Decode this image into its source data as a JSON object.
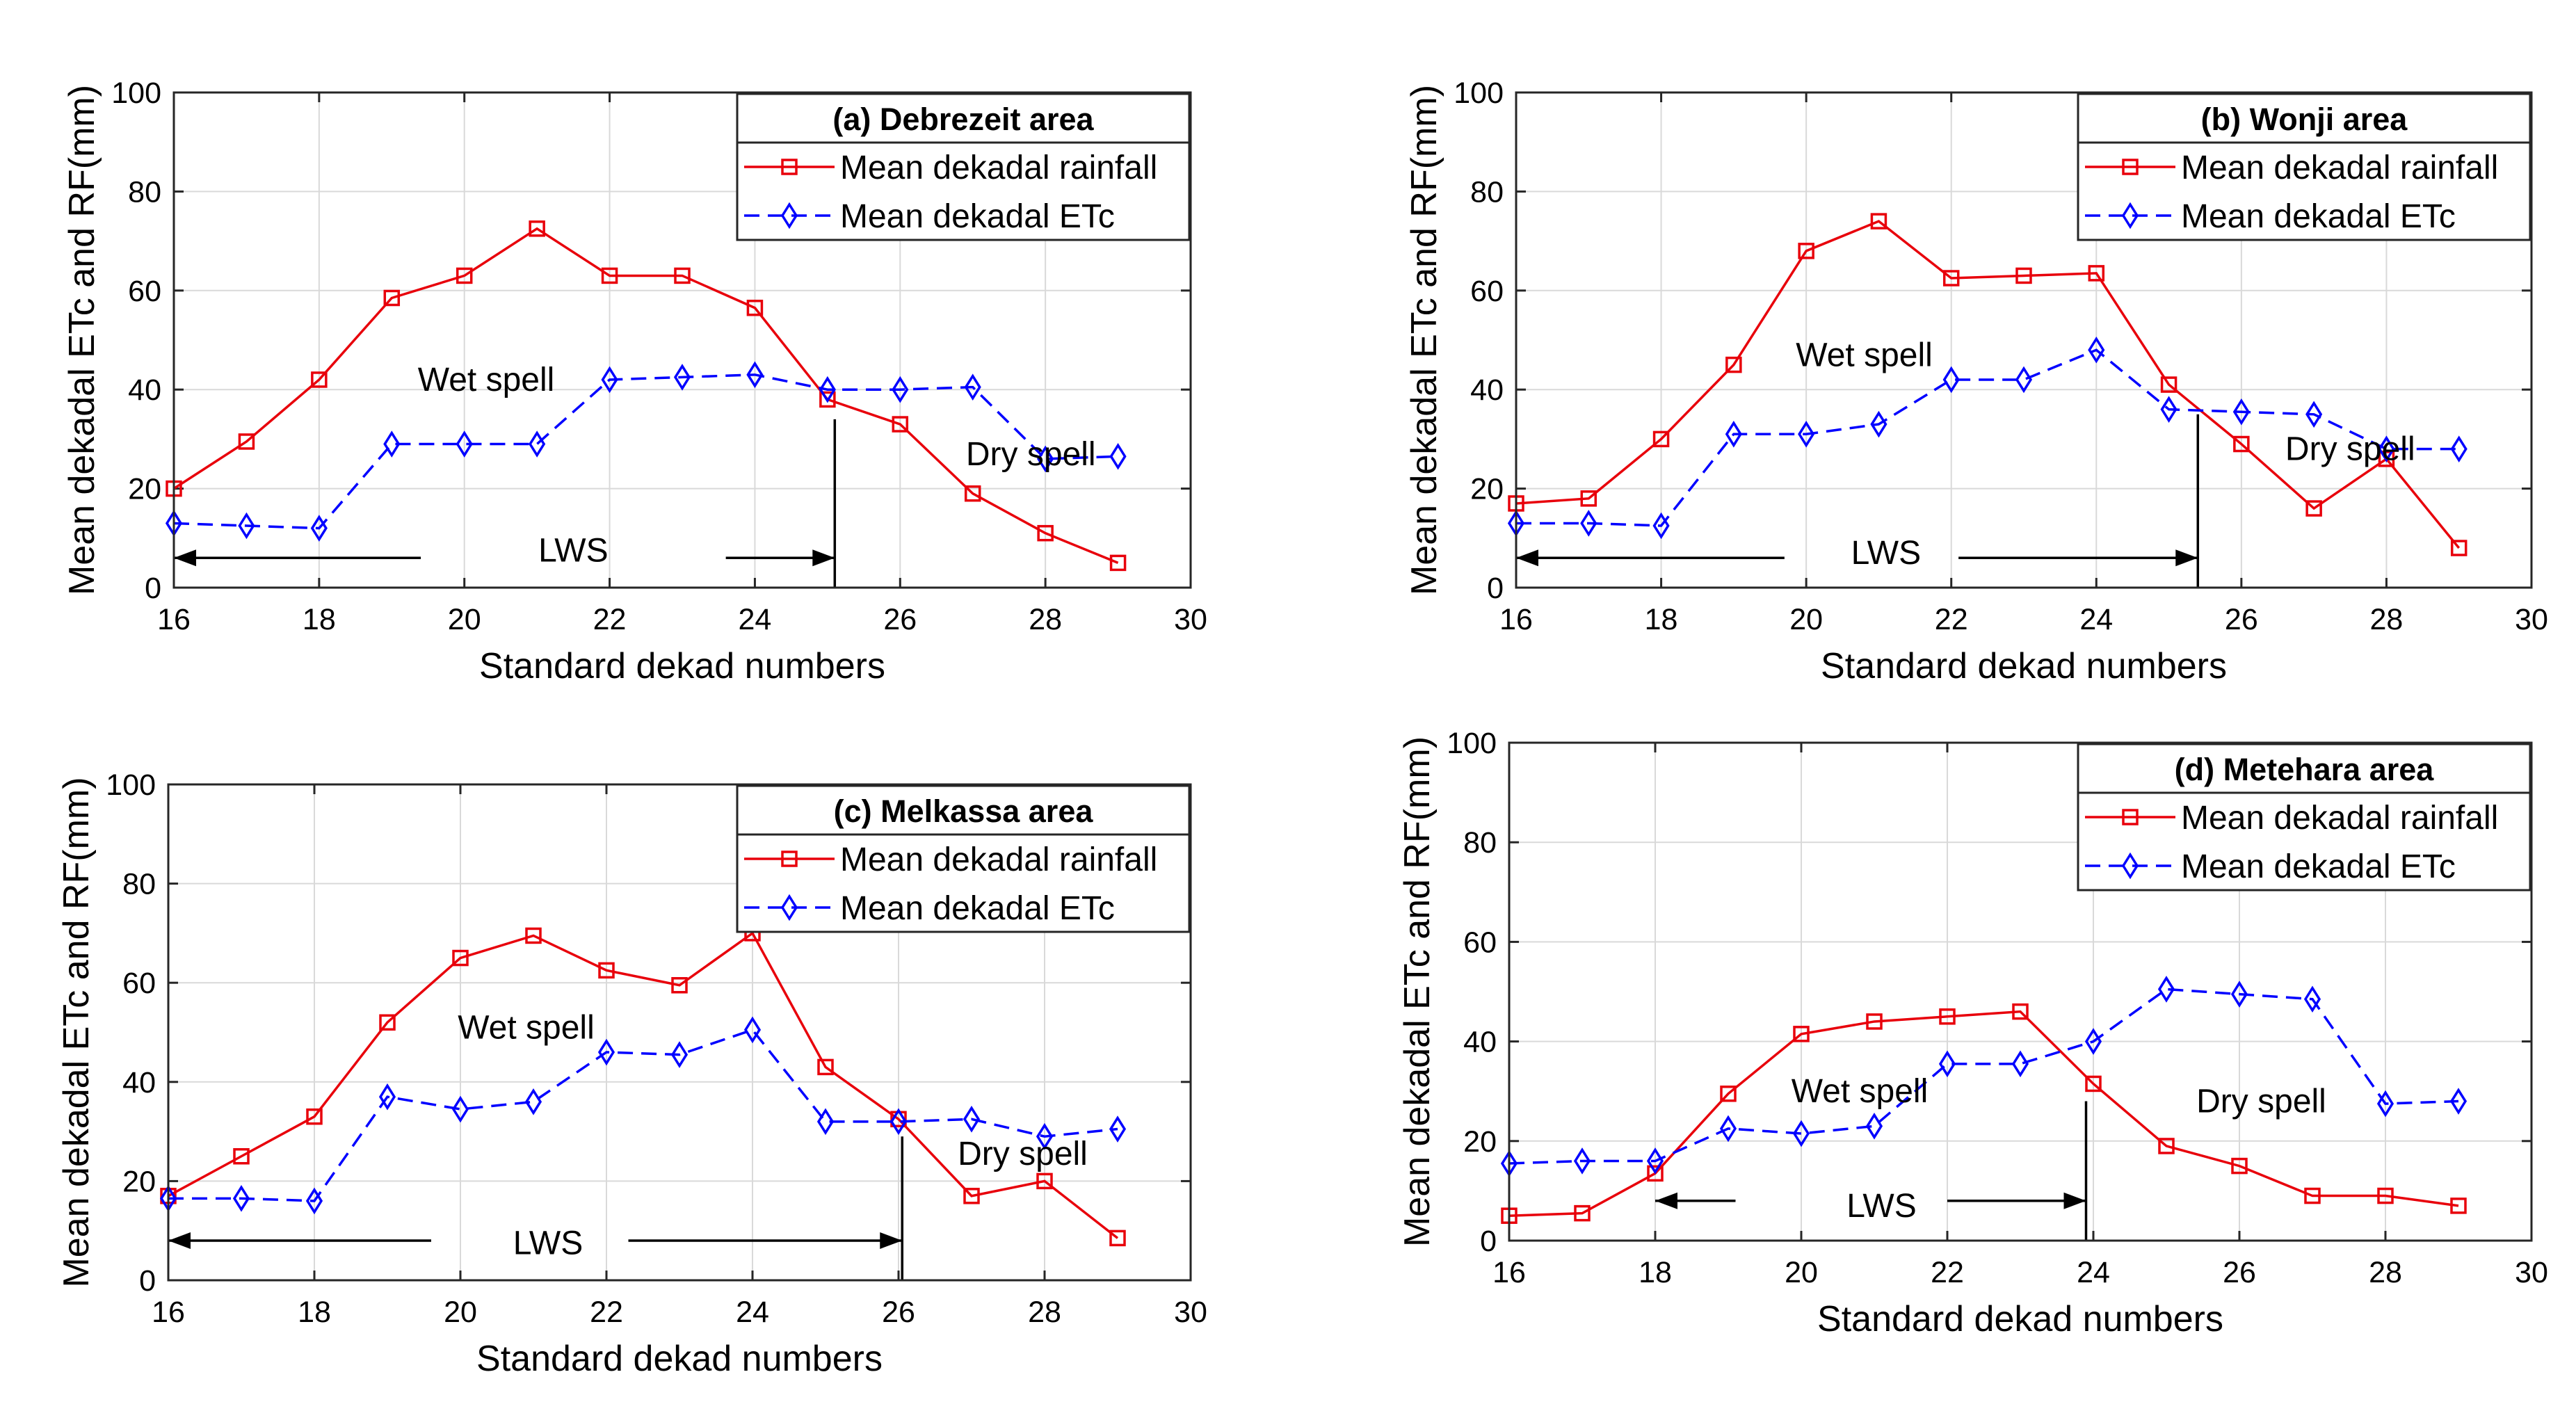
{
  "chart_data": [
    {
      "type": "line",
      "title": "(a) Debrezeit area",
      "xlabel": "Standard dekad numbers",
      "ylabel": "Mean dekadal ETc and RF(mm)",
      "xlim": [
        16,
        30
      ],
      "ylim": [
        0,
        100
      ],
      "xticks": [
        "16",
        "18",
        "20",
        "22",
        "24",
        "26",
        "28",
        "30"
      ],
      "yticks": [
        "0",
        "20",
        "40",
        "60",
        "80",
        "100"
      ],
      "grid": true,
      "legend_position": "top-right",
      "x": [
        16,
        17,
        18,
        19,
        20,
        21,
        22,
        23,
        24,
        25,
        26,
        27,
        28,
        29
      ],
      "series": [
        {
          "name": "Mean dekadal rainfall",
          "color": "#e8000b",
          "marker": "square",
          "line": "solid",
          "values": [
            20,
            29.5,
            42,
            58.5,
            63,
            72.5,
            63,
            63,
            56.5,
            38,
            33,
            19,
            11,
            5
          ]
        },
        {
          "name": "Mean dekadal ETc",
          "color": "#0000ff",
          "marker": "diamond",
          "line": "dashed",
          "values": [
            13,
            12.5,
            12,
            29,
            29,
            29,
            42,
            42.5,
            43,
            40,
            40,
            40.5,
            26,
            26.5
          ]
        }
      ],
      "annotations": [
        {
          "text": "Wet spell",
          "x": 20.3,
          "y": 42
        },
        {
          "text": "Dry spell",
          "x": 27.8,
          "y": 27
        },
        {
          "text": "LWS",
          "x": 21.5,
          "y": 7.5
        }
      ],
      "lws": {
        "x_start": 16,
        "x_end": 25.1,
        "y": 6,
        "line_top": 34,
        "label_gap": [
          19.4,
          23.6
        ]
      }
    },
    {
      "type": "line",
      "title": "(b) Wonji area",
      "xlabel": "Standard dekad numbers",
      "ylabel": "Mean dekadal ETc and RF(mm)",
      "xlim": [
        16,
        30
      ],
      "ylim": [
        0,
        100
      ],
      "xticks": [
        "16",
        "18",
        "20",
        "22",
        "24",
        "26",
        "28",
        "30"
      ],
      "yticks": [
        "0",
        "20",
        "40",
        "60",
        "80",
        "100"
      ],
      "grid": true,
      "legend_position": "top-right",
      "x": [
        16,
        17,
        18,
        19,
        20,
        21,
        22,
        23,
        24,
        25,
        26,
        27,
        28,
        29
      ],
      "series": [
        {
          "name": "Mean dekadal rainfall",
          "color": "#e8000b",
          "marker": "square",
          "line": "solid",
          "values": [
            17,
            18,
            30,
            45,
            68,
            74,
            62.5,
            63,
            63.5,
            41,
            29,
            16,
            26,
            8
          ]
        },
        {
          "name": "Mean dekadal ETc",
          "color": "#0000ff",
          "marker": "diamond",
          "line": "dashed",
          "values": [
            13,
            13,
            12.5,
            31,
            31,
            33,
            42,
            42,
            48,
            36,
            35.5,
            35,
            28,
            28
          ]
        }
      ],
      "annotations": [
        {
          "text": "Wet spell",
          "x": 20.8,
          "y": 47
        },
        {
          "text": "Dry spell",
          "x": 27.5,
          "y": 28
        },
        {
          "text": "LWS",
          "x": 21.1,
          "y": 7
        }
      ],
      "lws": {
        "x_start": 16,
        "x_end": 25.4,
        "y": 6,
        "line_top": 35,
        "label_gap": [
          19.7,
          22.1
        ]
      }
    },
    {
      "type": "line",
      "title": "(c) Melkassa area",
      "xlabel": "Standard dekad numbers",
      "ylabel": "Mean dekadal ETc and RF(mm)",
      "xlim": [
        16,
        30
      ],
      "ylim": [
        0,
        100
      ],
      "xticks": [
        "16",
        "18",
        "20",
        "22",
        "24",
        "26",
        "28",
        "30"
      ],
      "yticks": [
        "0",
        "20",
        "40",
        "60",
        "80",
        "100"
      ],
      "grid": true,
      "legend_position": "top-right",
      "x": [
        16,
        17,
        18,
        19,
        20,
        21,
        22,
        23,
        24,
        25,
        26,
        27,
        28,
        29
      ],
      "series": [
        {
          "name": "Mean dekadal rainfall",
          "color": "#e8000b",
          "marker": "square",
          "line": "solid",
          "values": [
            17,
            25,
            33,
            52,
            65,
            69.5,
            62.5,
            59.5,
            70,
            43,
            32.5,
            17,
            20,
            8.5
          ]
        },
        {
          "name": "Mean dekadal ETc",
          "color": "#0000ff",
          "marker": "diamond",
          "line": "dashed",
          "values": [
            16.5,
            16.5,
            16,
            37,
            34.5,
            36,
            46,
            45.5,
            50.5,
            32,
            32,
            32.5,
            29,
            30.5
          ]
        }
      ],
      "annotations": [
        {
          "text": "Wet spell",
          "x": 20.9,
          "y": 51
        },
        {
          "text": "Dry spell",
          "x": 27.7,
          "y": 25.5
        },
        {
          "text": "LWS",
          "x": 21.2,
          "y": 7.5
        }
      ],
      "lws": {
        "x_start": 16,
        "x_end": 26.05,
        "y": 8,
        "line_top": 29,
        "label_gap": [
          19.6,
          22.3
        ]
      }
    },
    {
      "type": "line",
      "title": "(d) Metehara area",
      "xlabel": "Standard dekad numbers",
      "ylabel": "Mean dekadal ETc and RF(mm)",
      "xlim": [
        16,
        30
      ],
      "ylim": [
        0,
        100
      ],
      "xticks": [
        "16",
        "18",
        "20",
        "22",
        "24",
        "26",
        "28",
        "30"
      ],
      "yticks": [
        "0",
        "20",
        "40",
        "60",
        "80",
        "100"
      ],
      "grid": true,
      "legend_position": "top-right",
      "x": [
        16,
        17,
        18,
        19,
        20,
        21,
        22,
        23,
        24,
        25,
        26,
        27,
        28,
        29
      ],
      "series": [
        {
          "name": "Mean dekadal rainfall",
          "color": "#e8000b",
          "marker": "square",
          "line": "solid",
          "values": [
            5,
            5.5,
            13.5,
            29.5,
            41.5,
            44,
            45,
            46,
            31.5,
            19,
            15,
            9,
            9,
            7
          ]
        },
        {
          "name": "Mean dekadal ETc",
          "color": "#0000ff",
          "marker": "diamond",
          "line": "dashed",
          "values": [
            15.5,
            16,
            16,
            22.5,
            21.5,
            23,
            35.5,
            35.5,
            40,
            50.5,
            49.5,
            48.5,
            27.5,
            28
          ]
        }
      ],
      "annotations": [
        {
          "text": "Wet spell",
          "x": 20.8,
          "y": 30
        },
        {
          "text": "Dry spell",
          "x": 26.3,
          "y": 28
        },
        {
          "text": "LWS",
          "x": 21.1,
          "y": 7
        }
      ],
      "lws": {
        "x_start": 18,
        "x_end": 23.9,
        "y": 8,
        "line_top": 28,
        "label_gap": [
          19.1,
          22.0
        ]
      }
    }
  ]
}
